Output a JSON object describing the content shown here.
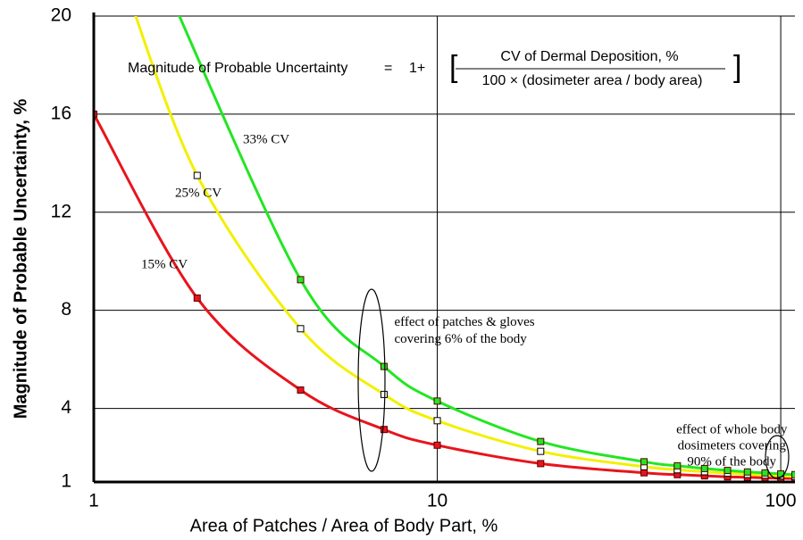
{
  "chart_data": {
    "type": "line",
    "xlabel": "Area of Patches / Area of Body Part, %",
    "ylabel": "Magnitude of Probable Uncertainty, %",
    "formula": {
      "lhs": "Magnitude of Probable Uncertainty",
      "eq": "=",
      "prefix": "1+",
      "numerator": "CV of Dermal Deposition, %",
      "denominator": "100 × (dosimeter area / body area)"
    },
    "xscale": "log",
    "xlim": [
      1,
      110
    ],
    "xticks": [
      1,
      10,
      100
    ],
    "ylim": [
      1,
      20
    ],
    "yticks": [
      1,
      4,
      8,
      12,
      16,
      20
    ],
    "grid": true,
    "series": [
      {
        "name": "15%  CV",
        "color": "#e8141c",
        "x": [
          1,
          2,
          4,
          7,
          10,
          20,
          40,
          50,
          60,
          70,
          80,
          90,
          100,
          110
        ],
        "values": [
          16,
          8.5,
          4.75,
          3.14,
          2.5,
          1.75,
          1.375,
          1.3,
          1.25,
          1.21,
          1.19,
          1.17,
          1.15,
          1.14
        ]
      },
      {
        "name": "25% CV",
        "color": "#f2f000",
        "x": [
          1.25,
          2,
          4,
          7,
          10,
          20,
          40,
          50,
          60,
          70,
          80,
          90,
          100,
          110
        ],
        "values": [
          21,
          13.5,
          7.25,
          4.57,
          3.5,
          2.25,
          1.625,
          1.5,
          1.42,
          1.36,
          1.31,
          1.28,
          1.25,
          1.23
        ]
      },
      {
        "name": "33%  CV",
        "color": "#22e622",
        "x": [
          1.65,
          4,
          7,
          10,
          20,
          40,
          50,
          60,
          70,
          80,
          90,
          100,
          110
        ],
        "values": [
          21,
          9.25,
          5.71,
          4.3,
          2.65,
          1.825,
          1.66,
          1.55,
          1.47,
          1.41,
          1.37,
          1.33,
          1.3
        ]
      }
    ],
    "annotations": [
      {
        "text": "effect of patches & gloves",
        "x": 7.5,
        "y": 7.5
      },
      {
        "text": "covering 6% of the body",
        "x": 7.5,
        "y": 6.8
      },
      {
        "text": "effect of whole body",
        "x": 72,
        "y": 3.1
      },
      {
        "text": "dosimeters covering",
        "x": 72,
        "y": 2.45
      },
      {
        "text": "90% of the body",
        "x": 72,
        "y": 1.8
      }
    ]
  }
}
